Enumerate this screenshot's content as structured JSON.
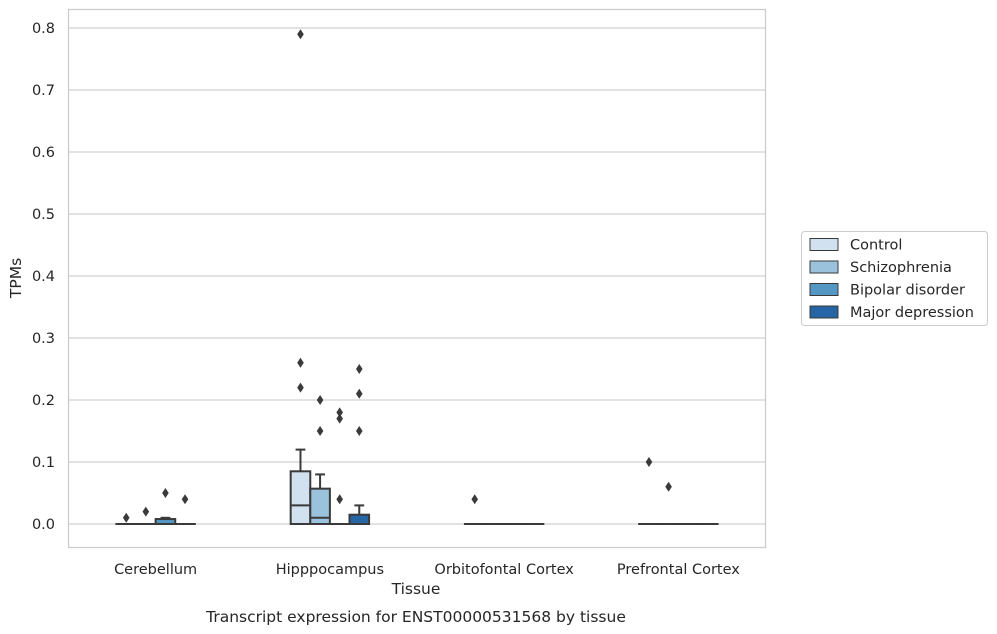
{
  "chart_data": {
    "type": "box",
    "title": "",
    "caption": "Transcript expression for ENST00000531568 by tissue",
    "xlabel": "Tissue",
    "ylabel": "TPMs",
    "ylim": [
      -0.04,
      0.83
    ],
    "yticks": [
      0.0,
      0.1,
      0.2,
      0.3,
      0.4,
      0.5,
      0.6,
      0.7,
      0.8
    ],
    "ytick_labels": [
      "0.0",
      "0.1",
      "0.2",
      "0.3",
      "0.4",
      "0.5",
      "0.6",
      "0.7",
      "0.8"
    ],
    "grid": "horizontal",
    "legend_position": "right",
    "categories": [
      "Cerebellum",
      "Hipppocampus",
      "Orbitofontal Cortex",
      "Prefrontal Cortex"
    ],
    "series": [
      {
        "name": "Control",
        "color": "#d1e1f0",
        "boxes": [
          {
            "min": 0,
            "q1": 0,
            "median": 0,
            "q3": 0,
            "max": 0,
            "outliers": [
              0.01
            ]
          },
          {
            "min": 0,
            "q1": 0,
            "median": 0.03,
            "q3": 0.085,
            "max": 0.12,
            "outliers": [
              0.26,
              0.22,
              0.79
            ]
          },
          {
            "min": 0,
            "q1": 0,
            "median": 0,
            "q3": 0,
            "max": 0,
            "outliers": [
              0.04
            ]
          },
          {
            "min": 0,
            "q1": 0,
            "median": 0,
            "q3": 0,
            "max": 0,
            "outliers": [
              0.1
            ]
          }
        ]
      },
      {
        "name": "Schizophrenia",
        "color": "#9ac2dc",
        "boxes": [
          {
            "min": 0,
            "q1": 0,
            "median": 0,
            "q3": 0,
            "max": 0,
            "outliers": [
              0.02
            ]
          },
          {
            "min": 0,
            "q1": 0,
            "median": 0.01,
            "q3": 0.057,
            "max": 0.08,
            "outliers": [
              0.2,
              0.15
            ]
          },
          {
            "min": 0,
            "q1": 0,
            "median": 0,
            "q3": 0,
            "max": 0,
            "outliers": []
          },
          {
            "min": 0,
            "q1": 0,
            "median": 0,
            "q3": 0,
            "max": 0,
            "outliers": [
              0.06
            ]
          }
        ]
      },
      {
        "name": "Bipolar disorder",
        "color": "#5497c5",
        "boxes": [
          {
            "min": 0,
            "q1": 0,
            "median": 0,
            "q3": 0.008,
            "max": 0.01,
            "outliers": [
              0.05
            ]
          },
          {
            "min": 0,
            "q1": 0,
            "median": 0,
            "q3": 0,
            "max": 0,
            "outliers": [
              0.18,
              0.17,
              0.04
            ]
          },
          {
            "min": 0,
            "q1": 0,
            "median": 0,
            "q3": 0,
            "max": 0,
            "outliers": []
          },
          {
            "min": 0,
            "q1": 0,
            "median": 0,
            "q3": 0,
            "max": 0,
            "outliers": []
          }
        ]
      },
      {
        "name": "Major depression",
        "color": "#2565a5",
        "boxes": [
          {
            "min": 0,
            "q1": 0,
            "median": 0,
            "q3": 0,
            "max": 0,
            "outliers": [
              0.04
            ]
          },
          {
            "min": 0,
            "q1": 0,
            "median": 0,
            "q3": 0.015,
            "max": 0.03,
            "outliers": [
              0.25,
              0.21,
              0.15
            ]
          },
          {
            "min": 0,
            "q1": 0,
            "median": 0,
            "q3": 0,
            "max": 0,
            "outliers": []
          },
          {
            "min": 0,
            "q1": 0,
            "median": 0,
            "q3": 0,
            "max": 0,
            "outliers": []
          }
        ]
      }
    ]
  }
}
